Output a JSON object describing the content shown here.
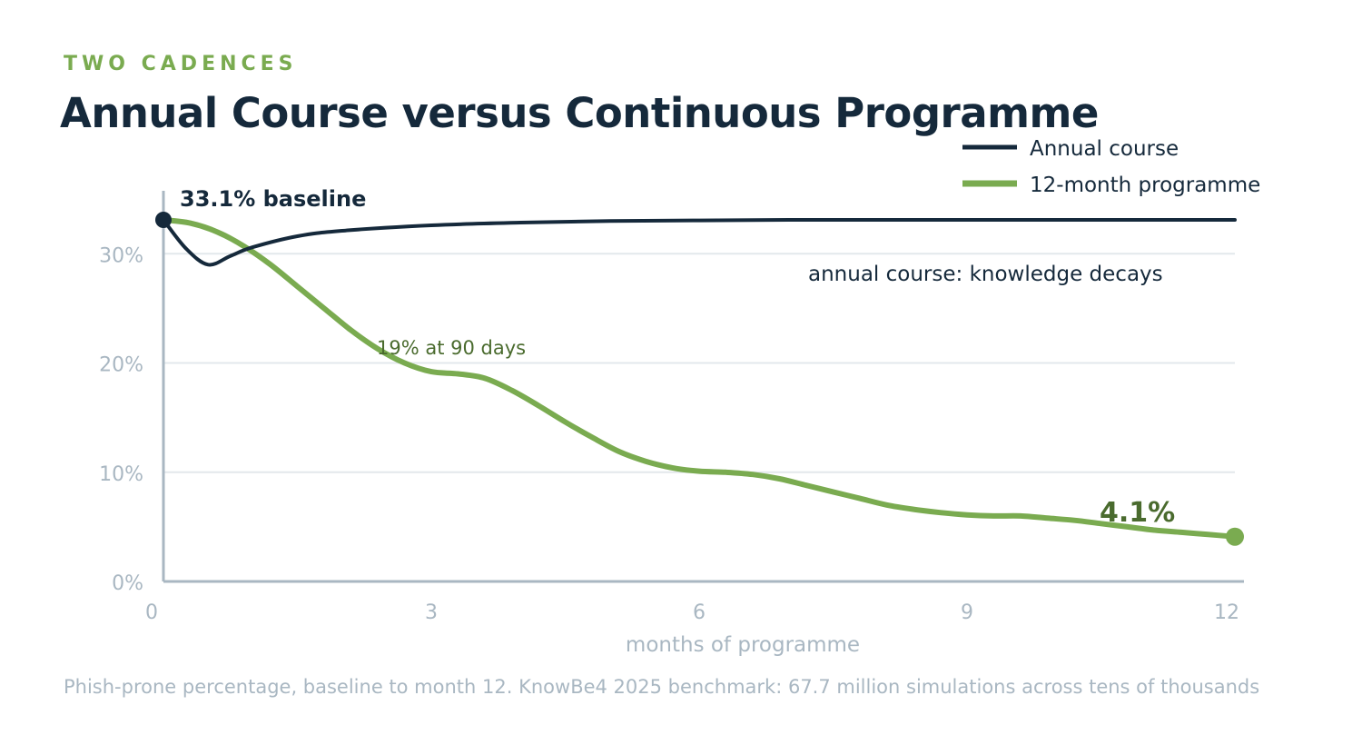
{
  "header": {
    "kicker": "TWO CADENCES",
    "title": "Annual Course versus Continuous Programme"
  },
  "footnote": "Phish-prone percentage, baseline to month 12. KnowBe4 2025 benchmark: 67.7 million simulations across tens of thousands",
  "colors": {
    "annual": "#15293b",
    "programme": "#7aab50",
    "programme_dark": "#4a6b2e",
    "axis": "#a9b7c2",
    "grid": "#e3e8ec"
  },
  "chart_data": {
    "type": "line",
    "xlabel": "months of programme",
    "ylabel": "",
    "xlim": [
      0,
      12
    ],
    "ylim": [
      0,
      33.1
    ],
    "x_ticks": [
      "0",
      "3",
      "6",
      "9",
      "12"
    ],
    "y_ticks": [
      "0%",
      "10%",
      "20%",
      "30%"
    ],
    "grid": true,
    "legend_position": "top-right",
    "series": [
      {
        "name": "Annual course",
        "x": [
          0,
          0.25,
          0.5,
          0.75,
          1,
          1.5,
          2,
          3,
          4,
          5,
          6,
          7,
          8,
          9,
          10,
          11,
          12
        ],
        "y": [
          33.1,
          30.5,
          29.0,
          29.8,
          30.6,
          31.6,
          32.1,
          32.6,
          32.85,
          33.0,
          33.05,
          33.1,
          33.1,
          33.1,
          33.1,
          33.1,
          33.1
        ]
      },
      {
        "name": "12-month programme",
        "x": [
          0,
          0.3,
          0.6,
          0.9,
          1.2,
          1.5,
          1.8,
          2.1,
          2.4,
          2.7,
          3.0,
          3.3,
          3.6,
          3.9,
          4.2,
          4.5,
          4.8,
          5.1,
          5.4,
          5.7,
          6.0,
          6.3,
          6.6,
          6.9,
          7.2,
          7.5,
          7.8,
          8.1,
          8.4,
          8.7,
          9.0,
          9.3,
          9.6,
          9.9,
          10.2,
          10.5,
          10.8,
          11.1,
          11.4,
          11.7,
          12.0
        ],
        "y": [
          33.1,
          32.8,
          32.0,
          30.7,
          29.0,
          27.0,
          25.0,
          23.0,
          21.3,
          20.0,
          19.2,
          19.0,
          18.6,
          17.5,
          16.1,
          14.6,
          13.2,
          11.9,
          11.0,
          10.4,
          10.1,
          10.0,
          9.8,
          9.4,
          8.8,
          8.2,
          7.6,
          7.0,
          6.6,
          6.3,
          6.1,
          6.0,
          6.0,
          5.8,
          5.6,
          5.3,
          5.0,
          4.7,
          4.5,
          4.3,
          4.1
        ]
      }
    ],
    "annotations": {
      "baseline": "33.1% baseline",
      "ninety_days": "19% at 90 days",
      "decay": "annual course: knowledge decays",
      "final": "4.1%"
    }
  }
}
